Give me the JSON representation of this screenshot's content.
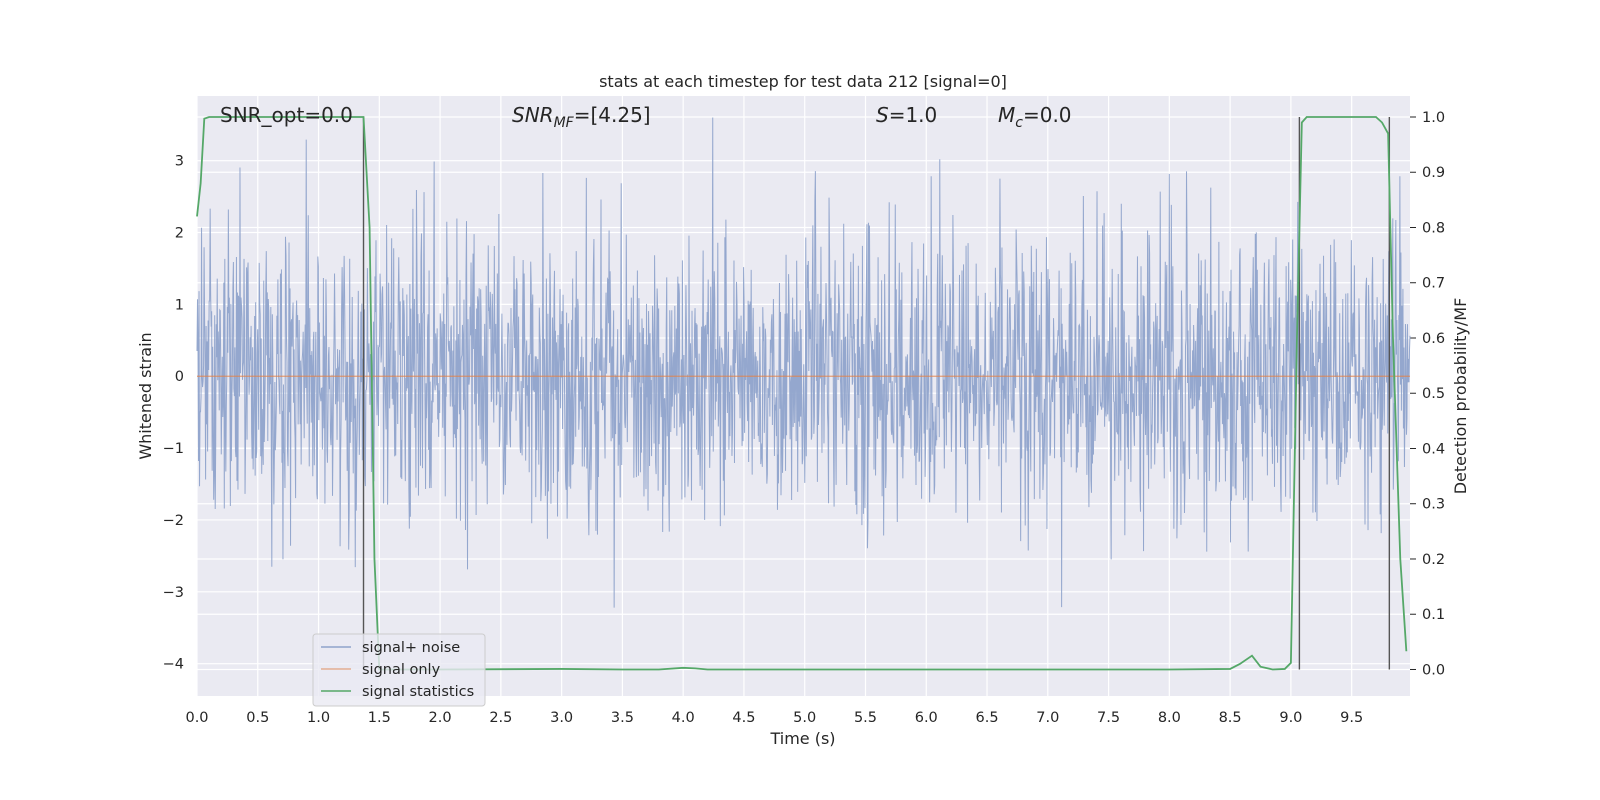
{
  "chart_data": {
    "type": "line",
    "title": "stats at each timestep for test data 212 [signal=0]",
    "xlabel": "Time (s)",
    "ylabel": "Whitened strain",
    "y2label": "Detection probability/MF",
    "xlim": [
      0.0,
      9.98
    ],
    "ylim": [
      -4.45,
      3.9
    ],
    "y2lim": [
      -0.048,
      1.038
    ],
    "x_ticks": [
      "0.0",
      "0.5",
      "1.0",
      "1.5",
      "2.0",
      "2.5",
      "3.0",
      "3.5",
      "4.0",
      "4.5",
      "5.0",
      "5.5",
      "6.0",
      "6.5",
      "7.0",
      "7.5",
      "8.0",
      "8.5",
      "9.0",
      "9.5"
    ],
    "y_ticks": [
      "3",
      "2",
      "1",
      "0",
      "−1",
      "−2",
      "−3",
      "−4"
    ],
    "y2_ticks": [
      "1.0",
      "0.9",
      "0.8",
      "0.7",
      "0.6",
      "0.5",
      "0.4",
      "0.3",
      "0.2",
      "0.1",
      "0.0"
    ],
    "grid": true,
    "legend_position": "lower-left",
    "annotations": {
      "snr_opt": "SNR_opt=0.0",
      "snr_mf_sym": "SNR",
      "snr_mf_sub": "MF",
      "snr_mf_val": "=[4.25]",
      "s_sym": "S",
      "s_val": "=1.0",
      "mc_sym": "M",
      "mc_sub": "c",
      "mc_val": "=0.0"
    },
    "detection_markers_s": [
      1.37,
      9.07,
      9.81
    ],
    "series": [
      {
        "name": "signal+ noise",
        "color": "#8fa3cb",
        "kind": "noise",
        "amplitude_std": 1.0,
        "y_range": [
          -4.0,
          3.6
        ]
      },
      {
        "name": "signal only",
        "color": "#dd8452",
        "kind": "constant",
        "value": 0.0
      },
      {
        "name": "signal statistics",
        "color": "#55a868",
        "axis": "right",
        "x": [
          0.0,
          0.03,
          0.06,
          0.1,
          0.2,
          0.5,
          1.0,
          1.2,
          1.37,
          1.42,
          1.46,
          1.5,
          1.6,
          2.0,
          3.0,
          3.5,
          3.8,
          4.0,
          4.1,
          4.2,
          5.0,
          6.0,
          7.0,
          8.0,
          8.5,
          8.58,
          8.68,
          8.75,
          8.85,
          8.95,
          9.0,
          9.05,
          9.09,
          9.13,
          9.2,
          9.3,
          9.5,
          9.7,
          9.75,
          9.8,
          9.84,
          9.9,
          9.95
        ],
        "y": [
          0.82,
          0.88,
          0.997,
          1.0,
          1.0,
          1.0,
          1.0,
          1.0,
          1.0,
          0.8,
          0.2,
          0.0,
          0.0,
          0.0,
          0.001,
          0.0,
          0.0,
          0.003,
          0.002,
          0.0,
          0.0,
          0.0,
          0.0,
          0.0,
          0.001,
          0.01,
          0.025,
          0.005,
          0.0,
          0.001,
          0.012,
          0.6,
          0.99,
          1.0,
          1.0,
          1.0,
          1.0,
          1.0,
          0.99,
          0.97,
          0.6,
          0.2,
          0.033
        ]
      }
    ]
  }
}
